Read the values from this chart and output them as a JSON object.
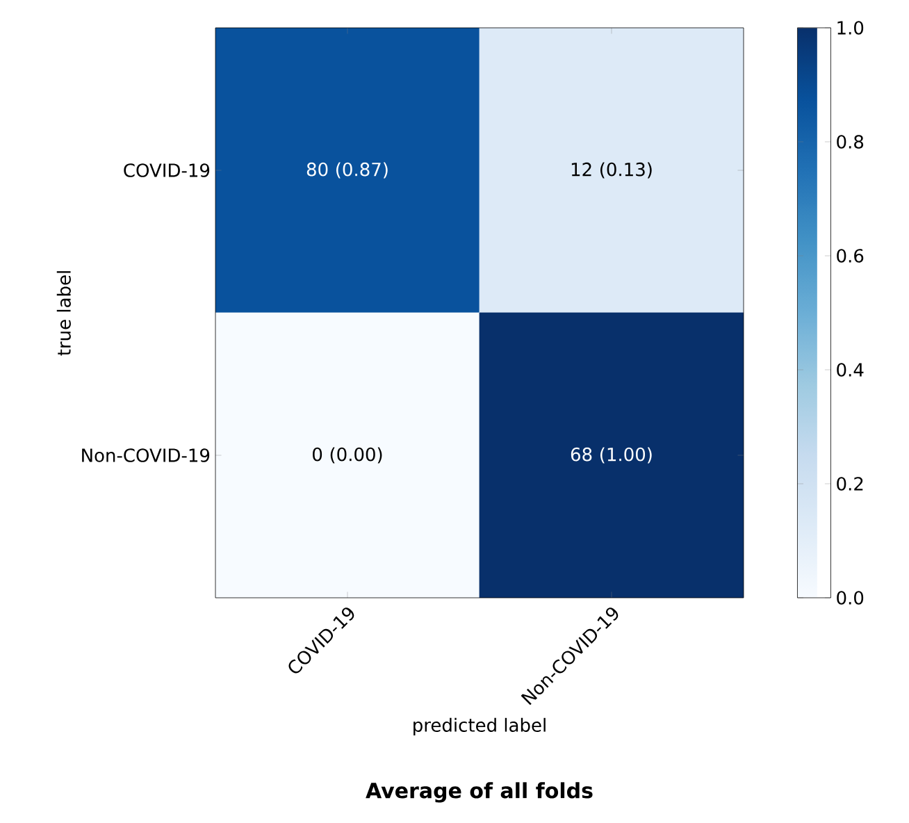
{
  "chart_data": {
    "type": "heatmap",
    "title": "Average of all folds",
    "xlabel": "predicted label",
    "ylabel": "true label",
    "categories": [
      "COVID-19",
      "Non-COVID-19"
    ],
    "y_categories": [
      "COVID-19",
      "Non-COVID-19"
    ],
    "cells": [
      [
        0.87,
        0.13
      ],
      [
        0.0,
        1.0
      ]
    ],
    "cell_labels": [
      [
        "80 (0.87)",
        "12 (0.13)"
      ],
      [
        "0 (0.00)",
        "68 (1.00)"
      ]
    ],
    "clim": [
      0,
      1
    ],
    "cticks": [
      {
        "value": 0,
        "label": "0.0"
      },
      {
        "value": 0.2,
        "label": "0.2"
      },
      {
        "value": 0.4,
        "label": "0.4"
      },
      {
        "value": 0.6,
        "label": "0.6"
      },
      {
        "value": 0.8,
        "label": "0.8"
      },
      {
        "value": 1,
        "label": "1.0"
      }
    ]
  }
}
